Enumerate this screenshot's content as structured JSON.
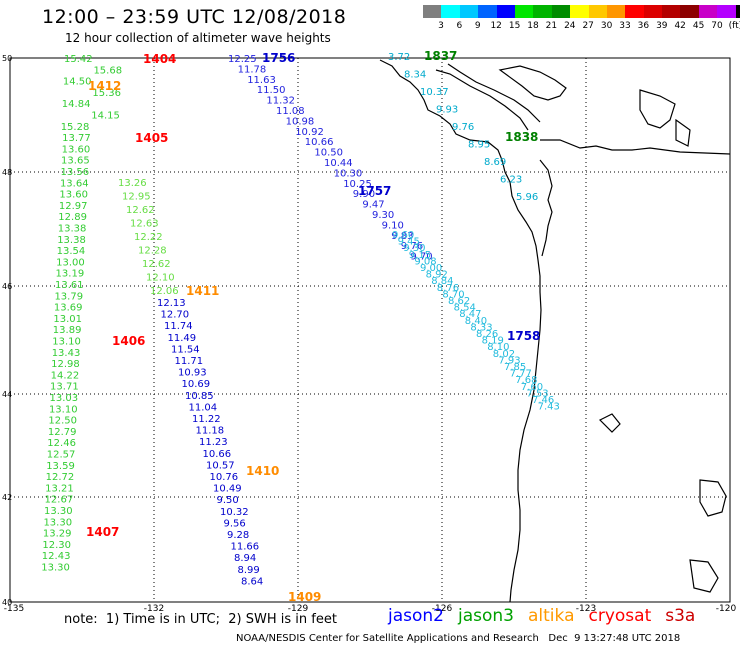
{
  "header": {
    "title": "12:00 – 23:59 UTC 12/08/2018",
    "subtitle": "12 hour collection of altimeter wave heights"
  },
  "colorbar": {
    "colors": [
      "#7f7f7f",
      "#00ffff",
      "#00c8ff",
      "#0064ff",
      "#0000ff",
      "#00e600",
      "#00b400",
      "#008c00",
      "#ffff00",
      "#ffc800",
      "#ff9600",
      "#ff0000",
      "#dc0000",
      "#b40000",
      "#8c0000",
      "#c800c8",
      "#b400ff",
      "#000000"
    ],
    "labels": [
      "3",
      "6",
      "9",
      "12",
      "15",
      "18",
      "21",
      "24",
      "27",
      "30",
      "33",
      "36",
      "39",
      "42",
      "45",
      "70",
      "(ft)"
    ]
  },
  "axes": {
    "lat_labels": [
      "50",
      "48",
      "46",
      "44",
      "42",
      "40"
    ],
    "lon_labels": [
      "-135",
      "-132",
      "-129",
      "-126",
      "-123",
      "-120"
    ]
  },
  "passes": [
    {
      "id": "1404",
      "color": "#ff0000"
    },
    {
      "id": "1405",
      "color": "#ff0000"
    },
    {
      "id": "1406",
      "color": "#ff0000"
    },
    {
      "id": "1407",
      "color": "#ff0000"
    },
    {
      "id": "1411",
      "color": "#ff8c00"
    },
    {
      "id": "1410",
      "color": "#ff8c00"
    },
    {
      "id": "1409",
      "color": "#ff8c00"
    },
    {
      "id": "1412",
      "color": "#ff8c00"
    },
    {
      "id": "1756",
      "color": "#0000cc"
    },
    {
      "id": "1757",
      "color": "#0000cc"
    },
    {
      "id": "1758",
      "color": "#0000cc"
    },
    {
      "id": "1837",
      "color": "#008000"
    },
    {
      "id": "1838",
      "color": "#008000"
    }
  ],
  "tracks": {
    "left_green": [
      "15.42",
      "15.68",
      "14.50",
      "15.36",
      "14.84",
      "14.15",
      "15.28",
      "13.77",
      "13.60",
      "13.65",
      "13.56",
      "13.64",
      "13.60",
      "12.97",
      "12.89",
      "13.38",
      "13.38",
      "13.54",
      "13.00",
      "13.19",
      "13.61",
      "13.79",
      "13.69",
      "13.01",
      "13.89",
      "13.10",
      "13.43",
      "12.98",
      "14.22",
      "13.71",
      "13.03",
      "13.10",
      "12.50",
      "12.79",
      "12.46",
      "12.57",
      "13.59",
      "12.72",
      "13.21",
      "12.67",
      "13.30",
      "13.30",
      "13.29",
      "12.30",
      "12.43",
      "13.30"
    ],
    "mid_green": [
      "13.26",
      "12.95",
      "12.62",
      "12.63",
      "12.22",
      "12.28",
      "12.62",
      "12.10",
      "12.06"
    ],
    "blue_desc": [
      "12.13",
      "12.70",
      "11.74",
      "11.49",
      "11.54",
      "11.71",
      "10.93",
      "10.69",
      "10.85",
      "11.04",
      "11.22",
      "11.18",
      "11.23",
      "10.66",
      "10.57",
      "10.76",
      "10.49",
      "9.50",
      "10.32",
      "9.56",
      "9.28",
      "11.66",
      "8.94",
      "8.99",
      "8.64"
    ],
    "diag_top": [
      "12.25",
      "11.78",
      "11.63",
      "11.50",
      "11.32",
      "11.08",
      "10.98",
      "10.92",
      "10.66",
      "10.50",
      "10.44",
      "10.30",
      "10.25",
      "9.90",
      "9.47",
      "9.30",
      "9.10",
      "9.83",
      "9.76",
      "9.70"
    ],
    "diag_bottom": [
      "9.60",
      "9.45",
      "9.30",
      "9.15",
      "9.08",
      "9.00",
      "8.92",
      "8.84",
      "8.76",
      "8.70",
      "8.62",
      "8.54",
      "8.47",
      "8.40",
      "8.33",
      "8.26",
      "8.19",
      "8.10",
      "8.02",
      "7.93",
      "7.85",
      "7.77",
      "7.68",
      "7.60",
      "7.53",
      "7.46",
      "7.43"
    ],
    "coast_cyan": [
      "3.72",
      "8.34",
      "10.37",
      "9.93",
      "9.76",
      "8.95",
      "8.69",
      "6.23",
      "5.96"
    ]
  },
  "footer": {
    "note": "note:  1) Time is in UTC;  2) SWH is in feet",
    "credit": "NOAA/NESDIS Center for Satellite Applications and Research   Dec  9 13:27:48 UTC 2018",
    "legend": [
      {
        "label": "jason2",
        "color": "#0000ff"
      },
      {
        "label": "jason3",
        "color": "#00a000"
      },
      {
        "label": "altika",
        "color": "#ff9900"
      },
      {
        "label": "cryosat",
        "color": "#ff0000"
      },
      {
        "label": "s3a",
        "color": "#cc0000"
      }
    ]
  }
}
